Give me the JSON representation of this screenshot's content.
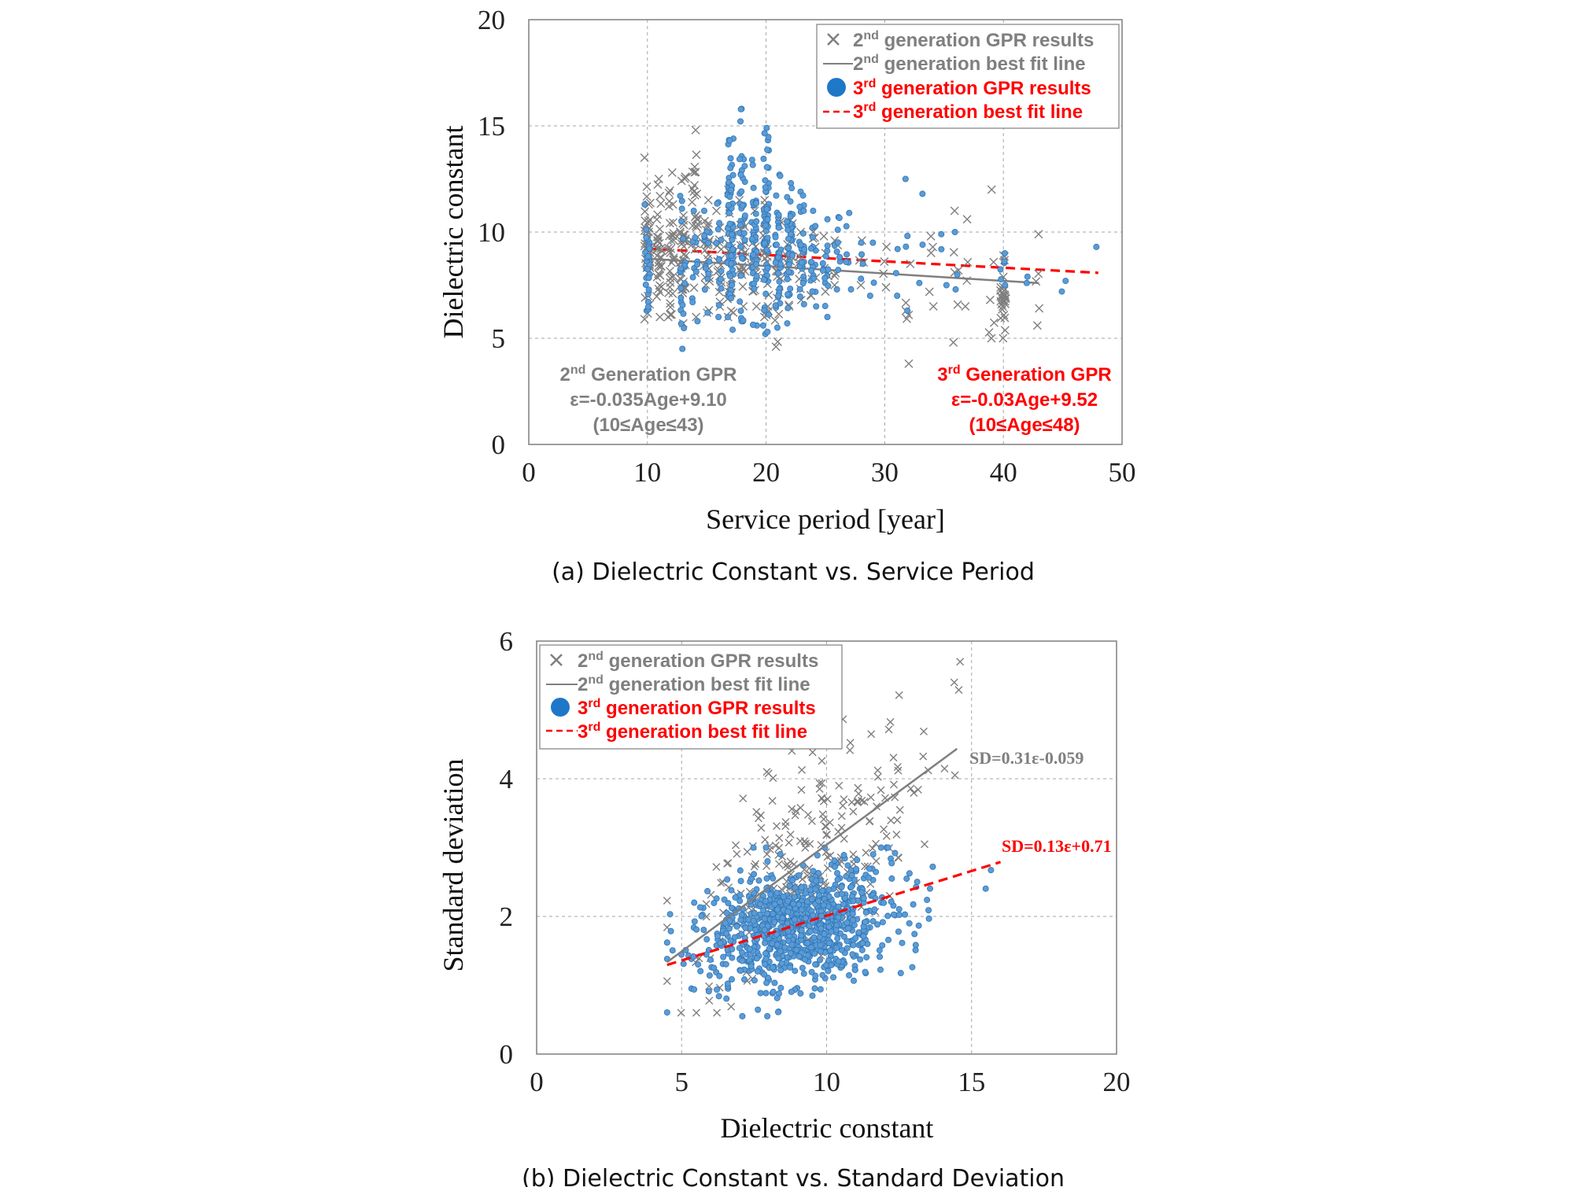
{
  "colors": {
    "gen2": "#7f7f7f",
    "gen3_point": "#5b9bd5",
    "gen3_edge": "#2e75b6",
    "gen3_line": "#ff0000",
    "gen2_text": "#7f7f7f",
    "gen3_text": "#ff0000"
  },
  "chart_data": [
    {
      "type": "scatter",
      "caption": "(a) Dielectric Constant vs. Service Period",
      "xlabel": "Service period [year]",
      "ylabel": "Dielectric constant",
      "xlim": [
        0,
        50
      ],
      "ylim": [
        0,
        20
      ],
      "xticks": [
        "0",
        "10",
        "20",
        "30",
        "40",
        "50"
      ],
      "yticks": [
        "0",
        "5",
        "10",
        "15",
        "20"
      ],
      "grid": true,
      "legend_position": "top-right",
      "legend": [
        {
          "marker": "x",
          "ordinal": "2",
          "sup": "nd",
          "text": " generation GPR results"
        },
        {
          "marker": "solid-line",
          "ordinal": "2",
          "sup": "nd",
          "text": " generation best fit line"
        },
        {
          "marker": "circle",
          "ordinal": "3",
          "sup": "rd",
          "text": " generation GPR results"
        },
        {
          "marker": "dashed-line",
          "ordinal": "3",
          "sup": "rd",
          "text": " generation best fit line"
        }
      ],
      "annotations": {
        "gen2": {
          "ordinal": "2",
          "sup": "nd",
          "title_rest": " Generation GPR",
          "equation": "ε=-0.035Age+9.10",
          "range": "(10≤Age≤43)"
        },
        "gen3": {
          "ordinal": "3",
          "sup": "rd",
          "title_rest": " Generation GPR",
          "equation": "ε=-0.03Age+9.52",
          "range": "(10≤Age≤48)"
        }
      },
      "series": [
        {
          "name": "2nd generation GPR results",
          "marker": "x",
          "clusters": [
            {
              "x": 10,
              "y_range": [
                5.9,
                13.5
              ],
              "count": 45
            },
            {
              "x": 11,
              "y_range": [
                6.0,
                12.5
              ],
              "count": 35
            },
            {
              "x": 12,
              "y_range": [
                6.0,
                12.8
              ],
              "count": 35
            },
            {
              "x": 13,
              "y_range": [
                5.7,
                12.6
              ],
              "count": 40
            },
            {
              "x": 14,
              "y_range": [
                6.0,
                14.8
              ],
              "count": 28
            },
            {
              "x": 15,
              "y_range": [
                6.2,
                11.5
              ],
              "count": 22
            },
            {
              "x": 16,
              "y_range": [
                6.5,
                11.0
              ],
              "count": 18
            },
            {
              "x": 17,
              "y_range": [
                6.0,
                12.0
              ],
              "count": 25
            },
            {
              "x": 18,
              "y_range": [
                6.5,
                11.5
              ],
              "count": 22
            },
            {
              "x": 19,
              "y_range": [
                6.5,
                11.0
              ],
              "count": 18
            },
            {
              "x": 20,
              "y_range": [
                6.0,
                11.5
              ],
              "count": 22
            },
            {
              "x": 21,
              "y_range": [
                4.6,
                10.5
              ],
              "count": 14
            },
            {
              "x": 22,
              "y_range": [
                6.5,
                10.5
              ],
              "count": 14
            },
            {
              "x": 23,
              "y_range": [
                6.8,
                10.0
              ],
              "count": 10
            },
            {
              "x": 24,
              "y_range": [
                7.0,
                10.0
              ],
              "count": 8
            },
            {
              "x": 25,
              "y_range": [
                7.2,
                9.8
              ],
              "count": 6
            },
            {
              "x": 26,
              "y_range": [
                7.5,
                9.6
              ],
              "count": 5
            },
            {
              "x": 28,
              "y_range": [
                7.5,
                9.6
              ],
              "count": 4
            },
            {
              "x": 30,
              "y_range": [
                7.4,
                9.3
              ],
              "count": 4
            },
            {
              "x": 32,
              "y_range": [
                3.8,
                8.5
              ],
              "count": 6
            },
            {
              "x": 34,
              "y_range": [
                6.5,
                9.8
              ],
              "count": 5
            },
            {
              "x": 36,
              "y_range": [
                4.8,
                11.0
              ],
              "count": 6
            },
            {
              "x": 37,
              "y_range": [
                6.5,
                10.6
              ],
              "count": 4
            },
            {
              "x": 39,
              "y_range": [
                5.0,
                12.0
              ],
              "count": 6
            },
            {
              "x": 40,
              "y_range": [
                5.0,
                8.9
              ],
              "count": 30
            },
            {
              "x": 43,
              "y_range": [
                5.6,
                9.9
              ],
              "count": 5
            }
          ]
        },
        {
          "name": "3rd generation GPR results",
          "marker": "circle",
          "clusters": [
            {
              "x": 10,
              "y_range": [
                6.3,
                11.3
              ],
              "count": 25
            },
            {
              "x": 13,
              "y_range": [
                4.5,
                11.7
              ],
              "count": 22
            },
            {
              "x": 14,
              "y_range": [
                5.8,
                11.0
              ],
              "count": 12
            },
            {
              "x": 15,
              "y_range": [
                6.2,
                11.0
              ],
              "count": 14
            },
            {
              "x": 16,
              "y_range": [
                6.0,
                11.4
              ],
              "count": 14
            },
            {
              "x": 17,
              "y_range": [
                5.4,
                14.4
              ],
              "count": 70
            },
            {
              "x": 18,
              "y_range": [
                5.8,
                15.8
              ],
              "count": 40
            },
            {
              "x": 19,
              "y_range": [
                5.6,
                13.4
              ],
              "count": 45
            },
            {
              "x": 20,
              "y_range": [
                5.2,
                14.9
              ],
              "count": 60
            },
            {
              "x": 21,
              "y_range": [
                5.5,
                12.7
              ],
              "count": 35
            },
            {
              "x": 22,
              "y_range": [
                5.7,
                12.3
              ],
              "count": 40
            },
            {
              "x": 23,
              "y_range": [
                6.6,
                11.9
              ],
              "count": 28
            },
            {
              "x": 24,
              "y_range": [
                6.5,
                11.0
              ],
              "count": 20
            },
            {
              "x": 25,
              "y_range": [
                6.0,
                10.6
              ],
              "count": 15
            },
            {
              "x": 26,
              "y_range": [
                7.3,
                10.7
              ],
              "count": 10
            },
            {
              "x": 27,
              "y_range": [
                7.3,
                10.9
              ],
              "count": 6
            },
            {
              "x": 28,
              "y_range": [
                7.8,
                9.5
              ],
              "count": 4
            },
            {
              "x": 29,
              "y_range": [
                7.0,
                9.5
              ],
              "count": 3
            },
            {
              "x": 31,
              "y_range": [
                7.0,
                9.2
              ],
              "count": 3
            },
            {
              "x": 32,
              "y_range": [
                6.3,
                12.5
              ],
              "count": 4
            },
            {
              "x": 33,
              "y_range": [
                7.6,
                11.8
              ],
              "count": 3
            },
            {
              "x": 35,
              "y_range": [
                7.5,
                9.9
              ],
              "count": 3
            },
            {
              "x": 36,
              "y_range": [
                7.3,
                10.0
              ],
              "count": 3
            },
            {
              "x": 40,
              "y_range": [
                7.5,
                9.0
              ],
              "count": 6
            },
            {
              "x": 42,
              "y_range": [
                7.6,
                7.9
              ],
              "count": 2
            },
            {
              "x": 45,
              "y_range": [
                7.2,
                7.7
              ],
              "count": 2
            },
            {
              "x": 48,
              "y_range": [
                9.3,
                9.4
              ],
              "count": 1
            }
          ]
        }
      ],
      "fits": [
        {
          "name": "2nd generation best fit line",
          "style": "solid",
          "slope": -0.035,
          "intercept": 9.1,
          "x_range": [
            10,
            43
          ]
        },
        {
          "name": "3rd generation best fit line",
          "style": "dashed",
          "slope": -0.03,
          "intercept": 9.52,
          "x_range": [
            10,
            48
          ]
        }
      ]
    },
    {
      "type": "scatter",
      "caption": "(b) Dielectric Constant vs. Standard Deviation",
      "xlabel": "Dielectric constant",
      "ylabel": "Standard deviation",
      "xlim": [
        0,
        20
      ],
      "ylim": [
        0,
        6
      ],
      "xticks": [
        "0",
        "5",
        "10",
        "15",
        "20"
      ],
      "yticks": [
        "0",
        "2",
        "4",
        "6"
      ],
      "grid": true,
      "legend_position": "top-left",
      "legend": [
        {
          "marker": "x",
          "ordinal": "2",
          "sup": "nd",
          "text": " generation GPR results"
        },
        {
          "marker": "solid-line",
          "ordinal": "2",
          "sup": "nd",
          "text": " generation best fit line"
        },
        {
          "marker": "circle",
          "ordinal": "3",
          "sup": "rd",
          "text": " generation GPR results"
        },
        {
          "marker": "dashed-line",
          "ordinal": "3",
          "sup": "rd",
          "text": " generation best fit line"
        }
      ],
      "annotations": {
        "gen2": "SD=0.31ε-0.059",
        "gen3": "SD=0.13ε+0.71"
      },
      "series": [
        {
          "name": "2nd generation GPR results",
          "marker": "x",
          "clouds": [
            {
              "cx": 9.4,
              "cy": 2.8,
              "sx": 1.9,
              "sy": 0.85,
              "corr": 0.55,
              "count": 260,
              "x_range": [
                4.5,
                15
              ],
              "y_range": [
                0.6,
                5.7
              ]
            },
            {
              "cx": 14.6,
              "cy": 5.4,
              "sx": 0.15,
              "sy": 0.35,
              "corr": 0.0,
              "count": 3,
              "x_range": [
                14,
                15
              ],
              "y_range": [
                4.8,
                5.7
              ]
            }
          ]
        },
        {
          "name": "3rd generation GPR results",
          "marker": "circle",
          "clouds": [
            {
              "cx": 9.0,
              "cy": 1.85,
              "sx": 1.7,
              "sy": 0.45,
              "corr": 0.35,
              "count": 900,
              "x_range": [
                4.5,
                16
              ],
              "y_range": [
                0.55,
                3.0
              ]
            }
          ]
        }
      ],
      "fits": [
        {
          "name": "2nd generation best fit line",
          "style": "solid",
          "slope": 0.31,
          "intercept": -0.059,
          "x_range": [
            4.5,
            14.5
          ]
        },
        {
          "name": "3rd generation best fit line",
          "style": "dashed",
          "slope": 0.13,
          "intercept": 0.71,
          "x_range": [
            4.5,
            16
          ]
        }
      ]
    }
  ]
}
